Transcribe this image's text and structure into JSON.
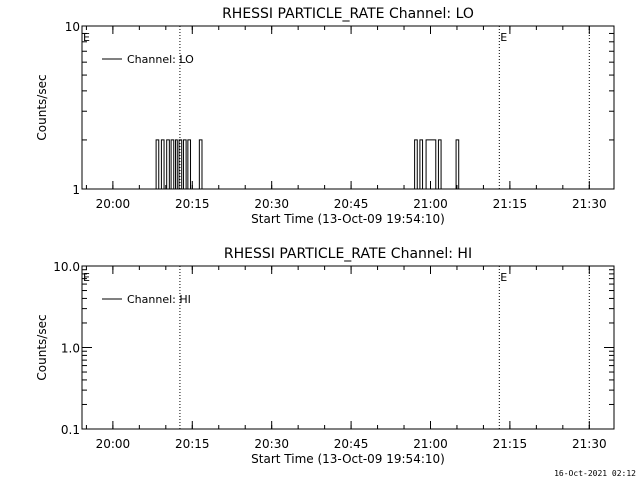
{
  "footer_timestamp": "16-Oct-2021 02:12",
  "chart_data": [
    {
      "type": "line",
      "title": "RHESSI PARTICLE_RATE Channel: LO",
      "xlabel": "Start Time (13-Oct-09 19:54:10)",
      "ylabel": "Counts/sec",
      "yscale": "log",
      "ylim": [
        1,
        10
      ],
      "ytick_labels": [
        "1",
        "10"
      ],
      "xlim": [
        "19:54:10",
        "21:34:40"
      ],
      "xtick_labels": [
        "20:00",
        "20:15",
        "20:30",
        "20:45",
        "21:00",
        "21:15",
        "21:30"
      ],
      "legend": {
        "label": "Channel: LO",
        "position": "top-left"
      },
      "markers": [
        {
          "label": "E",
          "time": "19:54:10"
        },
        {
          "label": "E",
          "time": "21:13:00"
        }
      ],
      "dotted_vlines": [
        "20:12:40",
        "21:13:00",
        "21:30:00"
      ],
      "spikes": [
        {
          "start": "20:08:10",
          "end": "20:08:40",
          "value": 2
        },
        {
          "start": "20:09:10",
          "end": "20:09:40",
          "value": 2
        },
        {
          "start": "20:10:10",
          "end": "20:10:40",
          "value": 2
        },
        {
          "start": "20:11:00",
          "end": "20:11:30",
          "value": 2
        },
        {
          "start": "20:11:50",
          "end": "20:12:10",
          "value": 2
        },
        {
          "start": "20:12:30",
          "end": "20:13:00",
          "value": 2
        },
        {
          "start": "20:13:20",
          "end": "20:13:50",
          "value": 2
        },
        {
          "start": "20:14:10",
          "end": "20:14:40",
          "value": 2
        },
        {
          "start": "20:16:20",
          "end": "20:16:50",
          "value": 2
        },
        {
          "start": "20:57:00",
          "end": "20:57:30",
          "value": 2
        },
        {
          "start": "20:58:00",
          "end": "20:58:30",
          "value": 2
        },
        {
          "start": "20:59:10",
          "end": "21:01:00",
          "value": 2
        },
        {
          "start": "21:01:30",
          "end": "21:02:00",
          "value": 2
        },
        {
          "start": "21:04:50",
          "end": "21:05:20",
          "value": 2
        }
      ]
    },
    {
      "type": "line",
      "title": "RHESSI PARTICLE_RATE Channel: HI",
      "xlabel": "Start Time (13-Oct-09 19:54:10)",
      "ylabel": "Counts/sec",
      "yscale": "log",
      "ylim": [
        0.1,
        10
      ],
      "ytick_labels": [
        "0.1",
        "1.0",
        "10.0"
      ],
      "xlim": [
        "19:54:10",
        "21:34:40"
      ],
      "xtick_labels": [
        "20:00",
        "20:15",
        "20:30",
        "20:45",
        "21:00",
        "21:15",
        "21:30"
      ],
      "legend": {
        "label": "Channel: HI",
        "position": "top-left"
      },
      "markers": [
        {
          "label": "E",
          "time": "19:54:10"
        },
        {
          "label": "E",
          "time": "21:13:00"
        }
      ],
      "dotted_vlines": [
        "20:12:40",
        "21:13:00",
        "21:30:00"
      ],
      "spikes": []
    }
  ]
}
